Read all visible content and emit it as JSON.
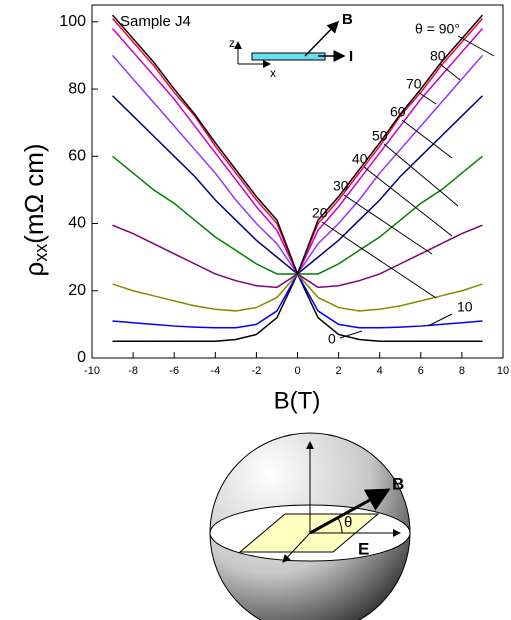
{
  "chart_data": {
    "type": "line",
    "x_label": "B(T)",
    "y_label": {
      "symbol": "ρ",
      "subscript": "xx",
      "unit": "(mΩ cm)"
    },
    "annotation": "Sample J4",
    "x": [
      -9,
      -8,
      -7,
      -6,
      -5,
      -4,
      -3,
      -2,
      -1,
      0,
      1,
      2,
      3,
      4,
      5,
      6,
      7,
      8,
      9
    ],
    "series": [
      {
        "name": "0",
        "color": "#000000",
        "values": [
          5,
          5,
          5,
          5,
          5,
          5,
          5.5,
          7,
          12,
          25,
          12,
          7,
          5.5,
          5,
          5,
          5,
          5,
          5,
          5
        ]
      },
      {
        "name": "10",
        "color": "#0000ff",
        "values": [
          11,
          10.5,
          10,
          9.5,
          9.2,
          9,
          9,
          10,
          14,
          25,
          14,
          10,
          9,
          9,
          9.2,
          9.5,
          10,
          10.5,
          11
        ]
      },
      {
        "name": "20",
        "color": "#8a8a00",
        "values": [
          22,
          20,
          18.5,
          17,
          15.5,
          14.5,
          14,
          15,
          18,
          25,
          18,
          15,
          14,
          14.5,
          15.5,
          17,
          18.5,
          20,
          22
        ]
      },
      {
        "name": "30",
        "color": "#800080",
        "values": [
          39.5,
          37,
          34,
          31,
          28,
          25,
          23,
          21.5,
          21,
          25,
          21,
          21.5,
          23,
          25,
          28,
          31,
          34,
          37,
          39.5
        ]
      },
      {
        "name": "40",
        "color": "#008000",
        "values": [
          60,
          55,
          50,
          46,
          41,
          36,
          32,
          28,
          25,
          25,
          25,
          28,
          32,
          36,
          41,
          46,
          50,
          55,
          60
        ]
      },
      {
        "name": "50",
        "color": "#000080",
        "values": [
          78,
          72,
          66,
          60,
          54,
          47,
          41,
          35,
          30,
          25,
          30,
          35,
          41,
          47,
          54,
          60,
          66,
          72,
          78
        ]
      },
      {
        "name": "60",
        "color": "#9933ff",
        "values": [
          90,
          83,
          76,
          69,
          62,
          55,
          47,
          40,
          34,
          25,
          34,
          40,
          47,
          55,
          62,
          69,
          76,
          83,
          90
        ]
      },
      {
        "name": "70",
        "color": "#cc00cc",
        "values": [
          98,
          91,
          84,
          77,
          69,
          61,
          53,
          45,
          38,
          25,
          38,
          45,
          53,
          61,
          69,
          77,
          84,
          91,
          98
        ]
      },
      {
        "name": "80",
        "color": "#ff0040",
        "values": [
          101,
          94,
          87,
          79,
          72,
          63,
          55,
          47,
          40,
          25,
          40,
          47,
          55,
          63,
          72,
          79,
          87,
          94,
          101
        ]
      },
      {
        "name": "θ = 90°",
        "color": "#000000",
        "values": [
          102,
          95,
          88,
          80,
          72.5,
          64,
          56,
          48,
          41,
          25,
          41,
          48,
          56,
          64,
          72.5,
          80,
          88,
          95,
          102
        ]
      }
    ],
    "xlim": [
      -10,
      10
    ],
    "ylim": [
      0,
      105
    ],
    "xticks": [
      -10,
      -8,
      -6,
      -4,
      -2,
      0,
      2,
      4,
      6,
      8,
      10
    ],
    "yticks": [
      0,
      20,
      40,
      60,
      80,
      100
    ]
  },
  "inset": {
    "z": "z",
    "x": "x",
    "b": "B",
    "i": "I"
  },
  "diagram": {
    "b": "B",
    "theta": "θ",
    "e": "E"
  }
}
